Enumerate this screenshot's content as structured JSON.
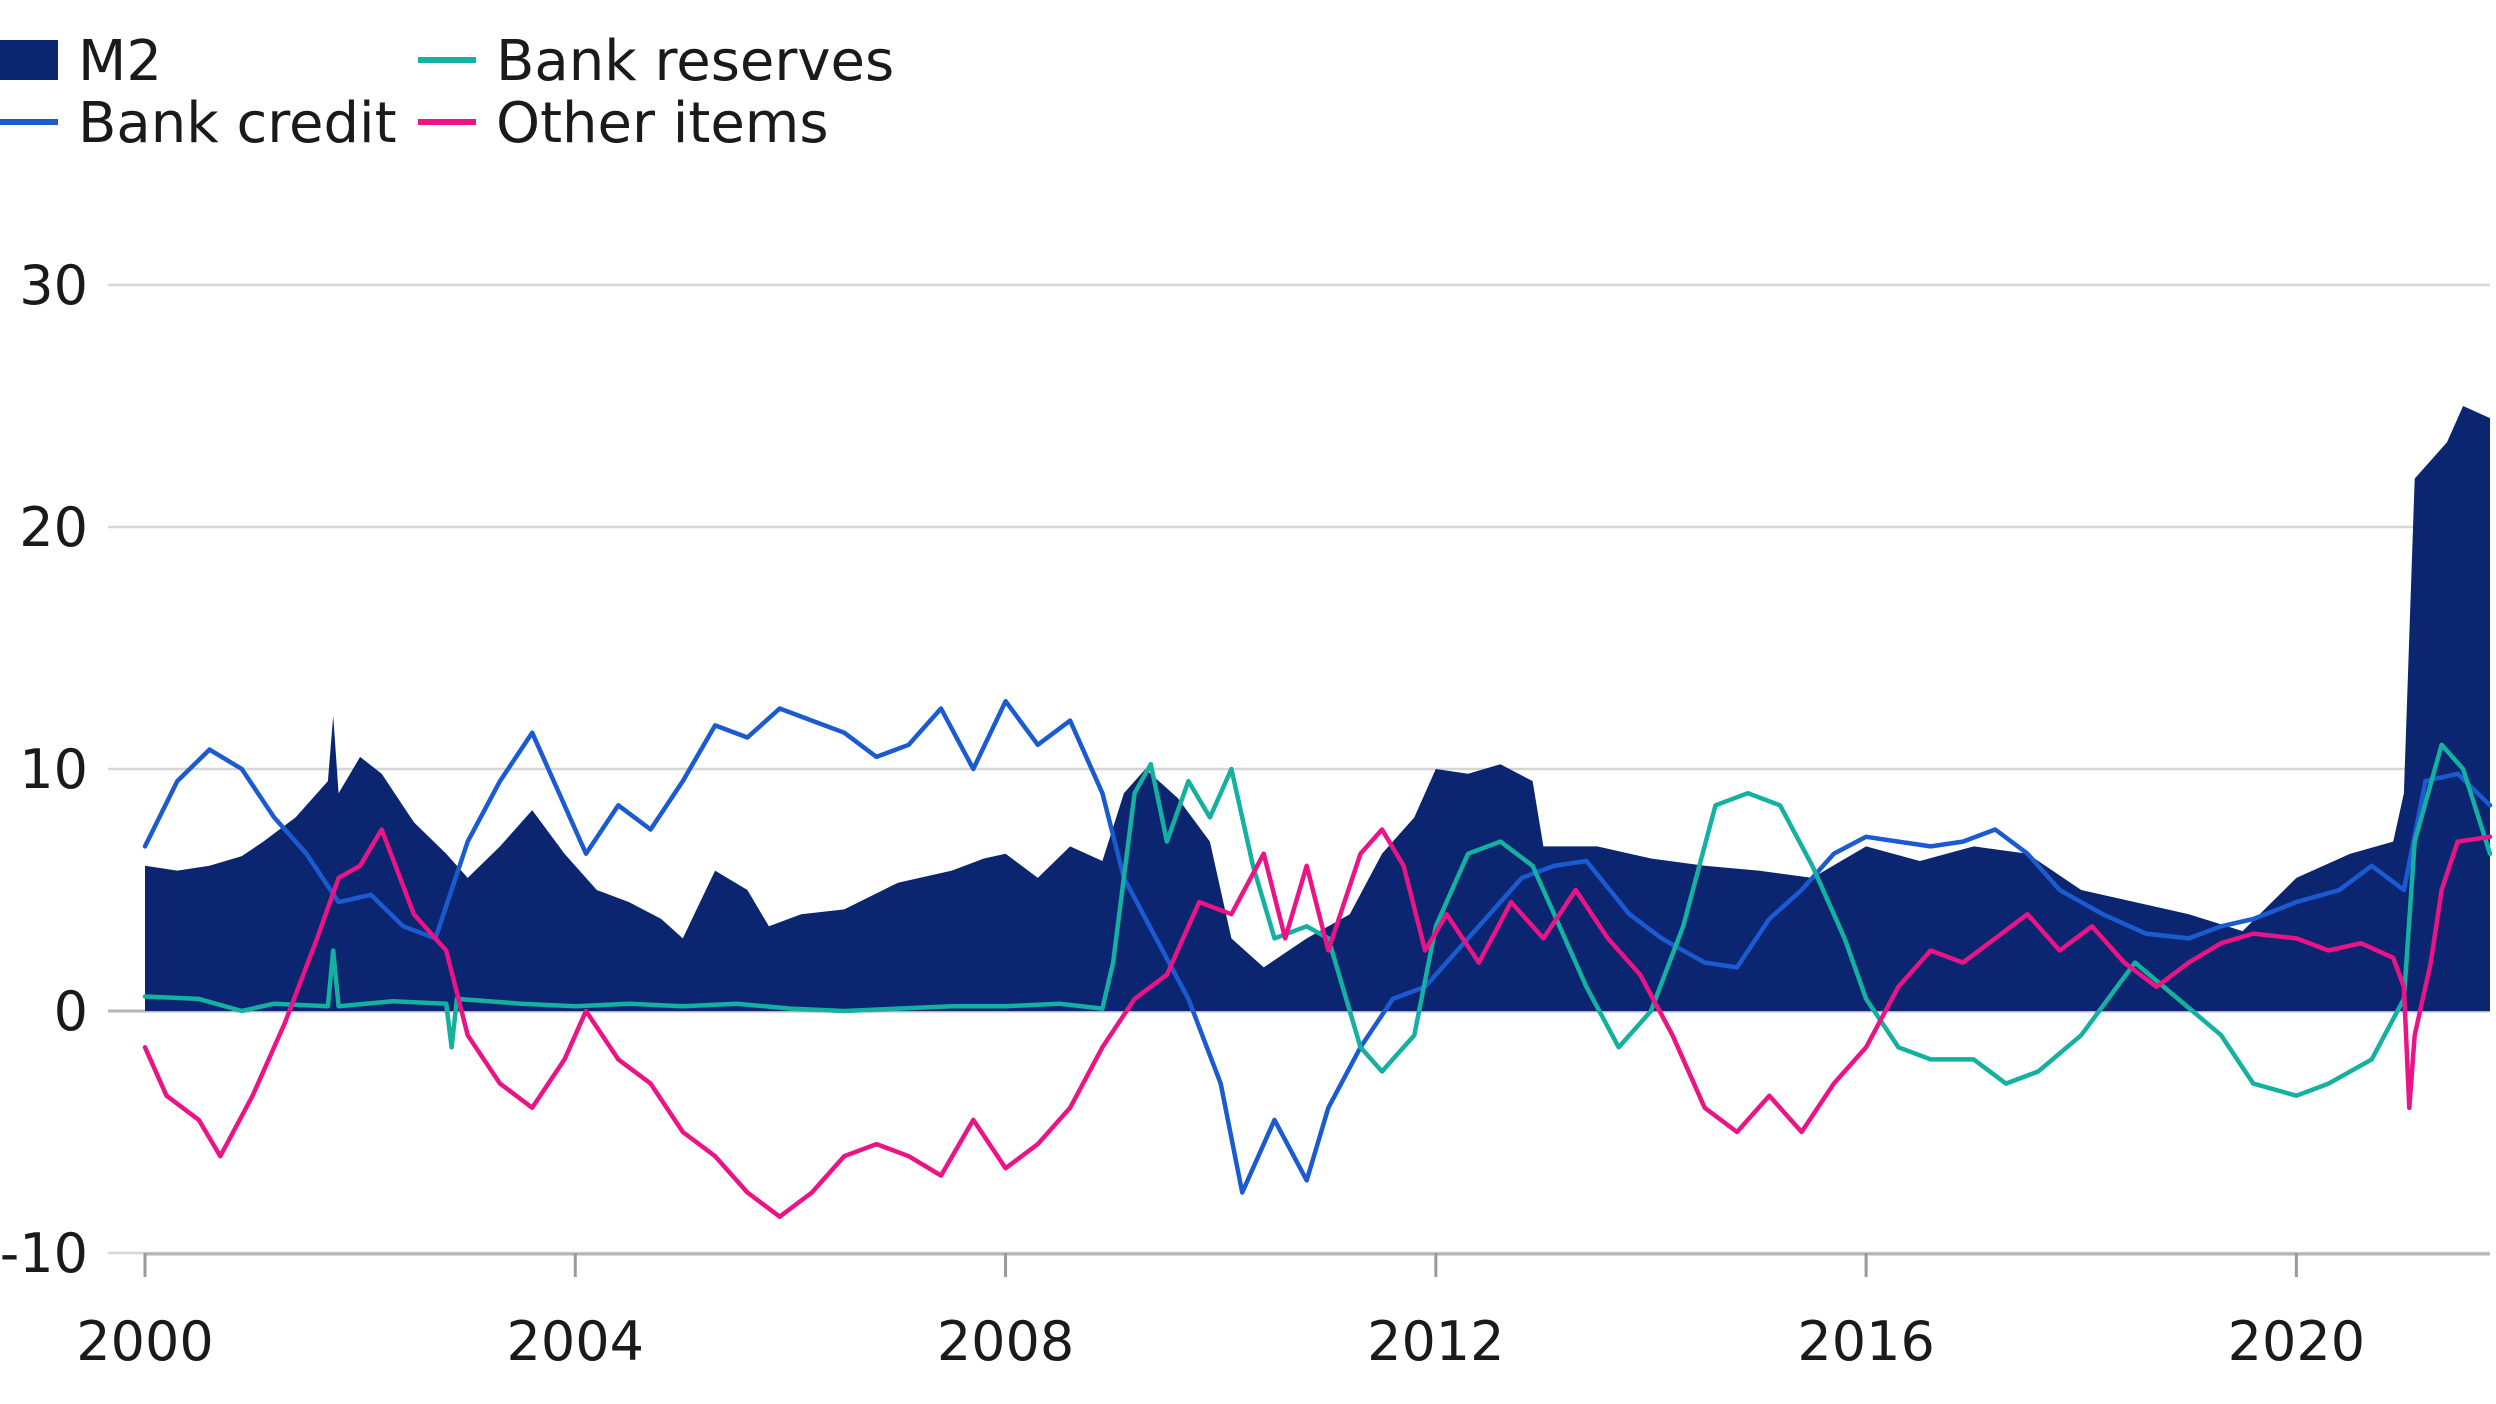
{
  "chart_data": {
    "type": "area",
    "title": "",
    "xlabel": "",
    "ylabel": "",
    "xlim": [
      2000,
      2021.8
    ],
    "ylim": [
      -10,
      30
    ],
    "x_ticks": [
      2000,
      2004,
      2008,
      2012,
      2016,
      2020
    ],
    "y_ticks": [
      -10,
      0,
      10,
      20,
      30
    ],
    "grid": "horizontal",
    "legend_position": "top-left",
    "series": [
      {
        "name": "M2",
        "kind": "area",
        "color": "#0b2570",
        "points": [
          [
            2000.0,
            6.0
          ],
          [
            2000.3,
            5.8
          ],
          [
            2000.6,
            6.0
          ],
          [
            2000.9,
            6.4
          ],
          [
            2001.1,
            7.0
          ],
          [
            2001.4,
            8.0
          ],
          [
            2001.7,
            9.5
          ],
          [
            2001.75,
            12.2
          ],
          [
            2001.8,
            9.0
          ],
          [
            2002.0,
            10.5
          ],
          [
            2002.2,
            9.8
          ],
          [
            2002.5,
            7.8
          ],
          [
            2002.8,
            6.5
          ],
          [
            2003.0,
            5.5
          ],
          [
            2003.3,
            6.8
          ],
          [
            2003.6,
            8.3
          ],
          [
            2003.9,
            6.5
          ],
          [
            2004.2,
            5.0
          ],
          [
            2004.5,
            4.5
          ],
          [
            2004.8,
            3.8
          ],
          [
            2005.0,
            3.0
          ],
          [
            2005.3,
            5.8
          ],
          [
            2005.6,
            5.0
          ],
          [
            2005.8,
            3.5
          ],
          [
            2006.1,
            4.0
          ],
          [
            2006.5,
            4.2
          ],
          [
            2007.0,
            5.3
          ],
          [
            2007.5,
            5.8
          ],
          [
            2007.8,
            6.3
          ],
          [
            2008.0,
            6.5
          ],
          [
            2008.3,
            5.5
          ],
          [
            2008.6,
            6.8
          ],
          [
            2008.9,
            6.2
          ],
          [
            2009.1,
            9.0
          ],
          [
            2009.3,
            10.0
          ],
          [
            2009.6,
            8.8
          ],
          [
            2009.9,
            7.0
          ],
          [
            2010.1,
            3.0
          ],
          [
            2010.4,
            1.8
          ],
          [
            2010.8,
            3.0
          ],
          [
            2011.2,
            4.0
          ],
          [
            2011.5,
            6.5
          ],
          [
            2011.8,
            8.0
          ],
          [
            2012.0,
            10.0
          ],
          [
            2012.3,
            9.8
          ],
          [
            2012.6,
            10.2
          ],
          [
            2012.9,
            9.5
          ],
          [
            2013.0,
            6.8
          ],
          [
            2013.5,
            6.8
          ],
          [
            2014.0,
            6.3
          ],
          [
            2014.5,
            6.0
          ],
          [
            2015.0,
            5.8
          ],
          [
            2015.5,
            5.5
          ],
          [
            2016.0,
            6.8
          ],
          [
            2016.5,
            6.2
          ],
          [
            2017.0,
            6.8
          ],
          [
            2017.5,
            6.5
          ],
          [
            2018.0,
            5.0
          ],
          [
            2018.5,
            4.5
          ],
          [
            2019.0,
            4.0
          ],
          [
            2019.5,
            3.3
          ],
          [
            2020.0,
            5.5
          ],
          [
            2020.5,
            6.5
          ],
          [
            2020.9,
            7.0
          ],
          [
            2021.0,
            9.0
          ],
          [
            2021.1,
            22.0
          ],
          [
            2021.4,
            23.5
          ],
          [
            2021.55,
            25.0
          ],
          [
            2021.8,
            24.5
          ]
        ]
      },
      {
        "name": "Bank credit",
        "kind": "line",
        "color": "#1b5bd1",
        "points": [
          [
            2000.0,
            6.8
          ],
          [
            2000.3,
            9.5
          ],
          [
            2000.6,
            10.8
          ],
          [
            2000.9,
            10.0
          ],
          [
            2001.2,
            8.0
          ],
          [
            2001.5,
            6.5
          ],
          [
            2001.8,
            4.5
          ],
          [
            2002.1,
            4.8
          ],
          [
            2002.4,
            3.5
          ],
          [
            2002.7,
            3.0
          ],
          [
            2003.0,
            7.0
          ],
          [
            2003.3,
            9.5
          ],
          [
            2003.6,
            11.5
          ],
          [
            2003.9,
            8.5
          ],
          [
            2004.1,
            6.5
          ],
          [
            2004.4,
            8.5
          ],
          [
            2004.7,
            7.5
          ],
          [
            2005.0,
            9.5
          ],
          [
            2005.3,
            11.8
          ],
          [
            2005.6,
            11.3
          ],
          [
            2005.9,
            12.5
          ],
          [
            2006.2,
            12.0
          ],
          [
            2006.5,
            11.5
          ],
          [
            2006.8,
            10.5
          ],
          [
            2007.1,
            11.0
          ],
          [
            2007.4,
            12.5
          ],
          [
            2007.7,
            10.0
          ],
          [
            2008.0,
            12.8
          ],
          [
            2008.3,
            11.0
          ],
          [
            2008.6,
            12.0
          ],
          [
            2008.9,
            9.0
          ],
          [
            2009.1,
            5.5
          ],
          [
            2009.4,
            3.0
          ],
          [
            2009.7,
            0.5
          ],
          [
            2010.0,
            -3.0
          ],
          [
            2010.2,
            -7.5
          ],
          [
            2010.5,
            -4.5
          ],
          [
            2010.8,
            -7.0
          ],
          [
            2011.0,
            -4.0
          ],
          [
            2011.3,
            -1.5
          ],
          [
            2011.6,
            0.5
          ],
          [
            2011.9,
            1.0
          ],
          [
            2012.2,
            2.5
          ],
          [
            2012.5,
            4.0
          ],
          [
            2012.8,
            5.5
          ],
          [
            2013.1,
            6.0
          ],
          [
            2013.4,
            6.2
          ],
          [
            2013.8,
            4.0
          ],
          [
            2014.1,
            3.0
          ],
          [
            2014.5,
            2.0
          ],
          [
            2014.8,
            1.8
          ],
          [
            2015.1,
            3.8
          ],
          [
            2015.4,
            5.0
          ],
          [
            2015.7,
            6.5
          ],
          [
            2016.0,
            7.2
          ],
          [
            2016.3,
            7.0
          ],
          [
            2016.6,
            6.8
          ],
          [
            2016.9,
            7.0
          ],
          [
            2017.2,
            7.5
          ],
          [
            2017.5,
            6.5
          ],
          [
            2017.8,
            5.0
          ],
          [
            2018.2,
            4.0
          ],
          [
            2018.6,
            3.2
          ],
          [
            2019.0,
            3.0
          ],
          [
            2019.3,
            3.5
          ],
          [
            2019.6,
            3.8
          ],
          [
            2020.0,
            4.5
          ],
          [
            2020.4,
            5.0
          ],
          [
            2020.7,
            6.0
          ],
          [
            2021.0,
            5.0
          ],
          [
            2021.2,
            9.5
          ],
          [
            2021.5,
            9.8
          ],
          [
            2021.8,
            8.5
          ]
        ]
      },
      {
        "name": "Bank reserves",
        "kind": "line",
        "color": "#14b0a0",
        "points": [
          [
            2000.0,
            0.6
          ],
          [
            2000.5,
            0.5
          ],
          [
            2000.9,
            0.0
          ],
          [
            2001.2,
            0.3
          ],
          [
            2001.7,
            0.2
          ],
          [
            2001.75,
            2.5
          ],
          [
            2001.8,
            0.2
          ],
          [
            2002.3,
            0.4
          ],
          [
            2002.8,
            0.3
          ],
          [
            2002.85,
            -1.5
          ],
          [
            2002.9,
            0.5
          ],
          [
            2003.5,
            0.3
          ],
          [
            2004.0,
            0.2
          ],
          [
            2004.5,
            0.3
          ],
          [
            2005.0,
            0.2
          ],
          [
            2005.5,
            0.3
          ],
          [
            2006.0,
            0.1
          ],
          [
            2006.5,
            0.0
          ],
          [
            2007.0,
            0.1
          ],
          [
            2007.5,
            0.2
          ],
          [
            2008.0,
            0.2
          ],
          [
            2008.5,
            0.3
          ],
          [
            2008.9,
            0.1
          ],
          [
            2009.0,
            2.0
          ],
          [
            2009.2,
            9.0
          ],
          [
            2009.35,
            10.2
          ],
          [
            2009.5,
            7.0
          ],
          [
            2009.7,
            9.5
          ],
          [
            2009.9,
            8.0
          ],
          [
            2010.1,
            10.0
          ],
          [
            2010.3,
            6.0
          ],
          [
            2010.5,
            3.0
          ],
          [
            2010.8,
            3.5
          ],
          [
            2011.0,
            3.0
          ],
          [
            2011.3,
            -1.5
          ],
          [
            2011.5,
            -2.5
          ],
          [
            2011.8,
            -1.0
          ],
          [
            2012.0,
            3.5
          ],
          [
            2012.3,
            6.5
          ],
          [
            2012.6,
            7.0
          ],
          [
            2012.9,
            6.0
          ],
          [
            2013.1,
            4.0
          ],
          [
            2013.4,
            1.0
          ],
          [
            2013.7,
            -1.5
          ],
          [
            2014.0,
            0.0
          ],
          [
            2014.3,
            3.5
          ],
          [
            2014.6,
            8.5
          ],
          [
            2014.9,
            9.0
          ],
          [
            2015.2,
            8.5
          ],
          [
            2015.5,
            6.0
          ],
          [
            2015.8,
            3.0
          ],
          [
            2016.0,
            0.5
          ],
          [
            2016.3,
            -1.5
          ],
          [
            2016.6,
            -2.0
          ],
          [
            2017.0,
            -2.0
          ],
          [
            2017.3,
            -3.0
          ],
          [
            2017.6,
            -2.5
          ],
          [
            2018.0,
            -1.0
          ],
          [
            2018.5,
            2.0
          ],
          [
            2018.9,
            0.5
          ],
          [
            2019.3,
            -1.0
          ],
          [
            2019.6,
            -3.0
          ],
          [
            2020.0,
            -3.5
          ],
          [
            2020.3,
            -3.0
          ],
          [
            2020.7,
            -2.0
          ],
          [
            2021.0,
            0.5
          ],
          [
            2021.1,
            7.0
          ],
          [
            2021.35,
            11.0
          ],
          [
            2021.55,
            10.0
          ],
          [
            2021.8,
            6.5
          ]
        ]
      },
      {
        "name": "Other items",
        "kind": "line",
        "color": "#ea1486",
        "points": [
          [
            2000.0,
            -1.5
          ],
          [
            2000.2,
            -3.5
          ],
          [
            2000.5,
            -4.5
          ],
          [
            2000.7,
            -6.0
          ],
          [
            2001.0,
            -3.5
          ],
          [
            2001.3,
            -0.5
          ],
          [
            2001.6,
            3.0
          ],
          [
            2001.8,
            5.5
          ],
          [
            2002.0,
            6.0
          ],
          [
            2002.2,
            7.5
          ],
          [
            2002.5,
            4.0
          ],
          [
            2002.8,
            2.5
          ],
          [
            2003.0,
            -1.0
          ],
          [
            2003.3,
            -3.0
          ],
          [
            2003.6,
            -4.0
          ],
          [
            2003.9,
            -2.0
          ],
          [
            2004.1,
            0.0
          ],
          [
            2004.4,
            -2.0
          ],
          [
            2004.7,
            -3.0
          ],
          [
            2005.0,
            -5.0
          ],
          [
            2005.3,
            -6.0
          ],
          [
            2005.6,
            -7.5
          ],
          [
            2005.9,
            -8.5
          ],
          [
            2006.2,
            -7.5
          ],
          [
            2006.5,
            -6.0
          ],
          [
            2006.8,
            -5.5
          ],
          [
            2007.1,
            -6.0
          ],
          [
            2007.4,
            -6.8
          ],
          [
            2007.7,
            -4.5
          ],
          [
            2008.0,
            -6.5
          ],
          [
            2008.3,
            -5.5
          ],
          [
            2008.6,
            -4.0
          ],
          [
            2008.9,
            -1.5
          ],
          [
            2009.2,
            0.5
          ],
          [
            2009.5,
            1.5
          ],
          [
            2009.8,
            4.5
          ],
          [
            2010.1,
            4.0
          ],
          [
            2010.4,
            6.5
          ],
          [
            2010.6,
            3.0
          ],
          [
            2010.8,
            6.0
          ],
          [
            2011.0,
            2.5
          ],
          [
            2011.3,
            6.5
          ],
          [
            2011.5,
            7.5
          ],
          [
            2011.7,
            6.0
          ],
          [
            2011.9,
            2.5
          ],
          [
            2012.1,
            4.0
          ],
          [
            2012.4,
            2.0
          ],
          [
            2012.7,
            4.5
          ],
          [
            2013.0,
            3.0
          ],
          [
            2013.3,
            5.0
          ],
          [
            2013.6,
            3.0
          ],
          [
            2013.9,
            1.5
          ],
          [
            2014.2,
            -1.0
          ],
          [
            2014.5,
            -4.0
          ],
          [
            2014.8,
            -5.0
          ],
          [
            2015.1,
            -3.5
          ],
          [
            2015.4,
            -5.0
          ],
          [
            2015.7,
            -3.0
          ],
          [
            2016.0,
            -1.5
          ],
          [
            2016.3,
            1.0
          ],
          [
            2016.6,
            2.5
          ],
          [
            2016.9,
            2.0
          ],
          [
            2017.2,
            3.0
          ],
          [
            2017.5,
            4.0
          ],
          [
            2017.8,
            2.5
          ],
          [
            2018.1,
            3.5
          ],
          [
            2018.4,
            2.0
          ],
          [
            2018.7,
            1.0
          ],
          [
            2019.0,
            2.0
          ],
          [
            2019.3,
            2.8
          ],
          [
            2019.6,
            3.2
          ],
          [
            2020.0,
            3.0
          ],
          [
            2020.3,
            2.5
          ],
          [
            2020.6,
            2.8
          ],
          [
            2020.9,
            2.2
          ],
          [
            2021.0,
            1.0
          ],
          [
            2021.05,
            -4.0
          ],
          [
            2021.1,
            -1.0
          ],
          [
            2021.25,
            2.0
          ],
          [
            2021.35,
            5.0
          ],
          [
            2021.5,
            7.0
          ],
          [
            2021.8,
            7.2
          ]
        ]
      }
    ]
  }
}
